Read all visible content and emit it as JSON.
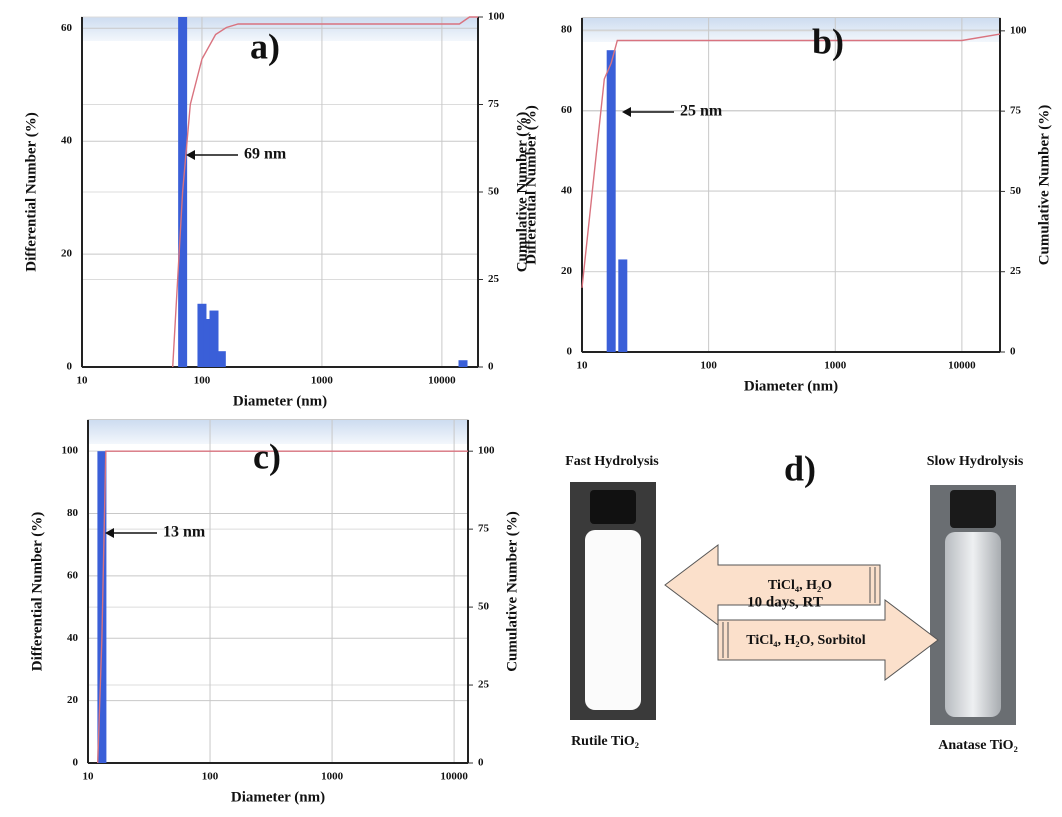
{
  "chart_data": [
    {
      "type": "bar",
      "panel_label": "a)",
      "annotation": "69 nm",
      "x_label": "Diameter (nm)",
      "y_label": "Differential Number (%)",
      "y2_label": "Cumulative Number (%)",
      "log_x": true,
      "xlim": [
        10,
        20000
      ],
      "xticks": [
        10,
        100,
        1000,
        10000
      ],
      "ylim": [
        0,
        62
      ],
      "yticks": [
        0,
        20,
        40,
        60
      ],
      "y2lim": [
        0,
        100
      ],
      "y2ticks": [
        0,
        25,
        50,
        75,
        100
      ],
      "grid": true,
      "x": [
        69,
        100,
        112,
        126,
        145,
        15000
      ],
      "values": [
        62,
        11.2,
        8.5,
        10,
        2.8,
        1.2
      ],
      "color": "#3a5fd8",
      "line": {
        "x": [
          57,
          69,
          80,
          100,
          130,
          160,
          200,
          500,
          14000,
          17000,
          20000
        ],
        "values": [
          0,
          50,
          75,
          88,
          95,
          97,
          98,
          98,
          98,
          100,
          100
        ],
        "color": "#d9737f",
        "axis": "y2"
      }
    },
    {
      "type": "bar",
      "panel_label": "b)",
      "annotation": "25 nm",
      "x_label": "Diameter (nm)",
      "y_label": "Differential Number (%)",
      "y2_label": "Cumulative Number (%)",
      "log_x": true,
      "xlim": [
        10,
        20000
      ],
      "xticks": [
        10,
        100,
        1000,
        10000
      ],
      "ylim": [
        0,
        83
      ],
      "yticks": [
        0,
        20,
        40,
        60,
        80
      ],
      "y2lim": [
        0,
        104
      ],
      "y2ticks": [
        0,
        25,
        50,
        75,
        100
      ],
      "grid": true,
      "x": [
        17,
        21
      ],
      "values": [
        75,
        23
      ],
      "color": "#3a5fd8",
      "line": {
        "x": [
          10,
          15,
          17,
          19,
          10000,
          20000
        ],
        "values": [
          20,
          85,
          90,
          97,
          97,
          99
        ],
        "color": "#d9737f",
        "axis": "y2"
      }
    },
    {
      "type": "bar",
      "panel_label": "c)",
      "annotation": "13 nm",
      "x_label": "Diameter (nm)",
      "y_label": "Differential Number (%)",
      "y2_label": "Cumulative Number (%)",
      "log_x": true,
      "xlim": [
        10,
        13000
      ],
      "xticks": [
        10,
        100,
        1000,
        10000
      ],
      "ylim": [
        0,
        110
      ],
      "yticks": [
        0,
        20,
        40,
        60,
        80,
        100
      ],
      "y2lim": [
        0,
        110
      ],
      "y2ticks": [
        0,
        25,
        50,
        75,
        100
      ],
      "grid": true,
      "x": [
        13
      ],
      "values": [
        100
      ],
      "color": "#3a5fd8",
      "line": {
        "x": [
          12,
          13,
          14,
          13000
        ],
        "values": [
          0,
          40,
          100,
          100
        ],
        "color": "#d9737f",
        "axis": "y2"
      }
    }
  ],
  "panel_d": {
    "label": "d)",
    "left_title": "Fast Hydrolysis",
    "right_title": "Slow Hydrolysis",
    "arrow_top": "TiCl₄, H₂O",
    "middle": "10 days, RT",
    "arrow_bottom": "TiCl₄, H₂O, Sorbitol",
    "left_caption": "Rutile TiO₂",
    "right_caption": "Anatase TiO₂"
  }
}
